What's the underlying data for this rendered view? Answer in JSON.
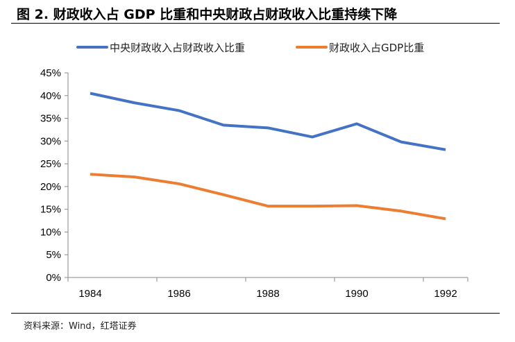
{
  "title": "图 2. 财政收入占 GDP 比重和中央财政占财政收入比重持续下降",
  "source": "资料来源：Wind，红塔证券",
  "chart_data": {
    "type": "line",
    "x": [
      1984,
      1985,
      1986,
      1987,
      1988,
      1989,
      1990,
      1991,
      1992
    ],
    "xticks": [
      "1984",
      "1986",
      "1988",
      "1990",
      "1992"
    ],
    "yticks": [
      "0%",
      "5%",
      "10%",
      "15%",
      "20%",
      "25%",
      "30%",
      "35%",
      "40%",
      "45%"
    ],
    "ylim": [
      0,
      45
    ],
    "legend_position": "top",
    "series": [
      {
        "name": "中央财政收入占财政收入比重",
        "color": "#4472C4",
        "values": [
          40.5,
          38.4,
          36.7,
          33.5,
          32.9,
          30.9,
          33.8,
          29.8,
          28.1
        ]
      },
      {
        "name": "财政收入占GDP比重",
        "color": "#ED7D31",
        "values": [
          22.7,
          22.1,
          20.6,
          18.2,
          15.7,
          15.7,
          15.8,
          14.6,
          12.9
        ]
      }
    ]
  }
}
